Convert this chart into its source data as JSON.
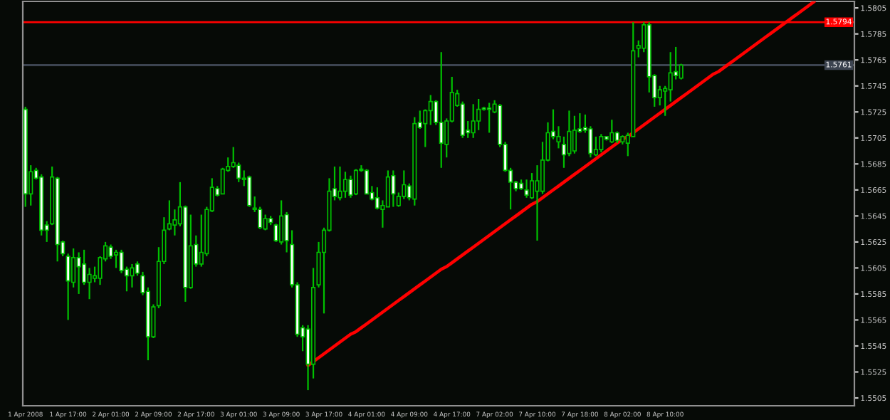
{
  "chart_data": {
    "type": "candlestick",
    "color": "#00c000",
    "categories": [
      "1 Apr 2008",
      null,
      null,
      null,
      null,
      null,
      null,
      null,
      "1 Apr 17:00",
      null,
      null,
      null,
      null,
      null,
      null,
      null,
      "2 Apr 01:00",
      null,
      null,
      null,
      null,
      null,
      null,
      null,
      "2 Apr 09:00",
      null,
      null,
      null,
      null,
      null,
      null,
      null,
      "2 Apr 17:00",
      null,
      null,
      null,
      null,
      null,
      null,
      null,
      "3 Apr 01:00",
      null,
      null,
      null,
      null,
      null,
      null,
      null,
      "3 Apr 09:00",
      null,
      null,
      null,
      null,
      null,
      null,
      null,
      "3 Apr 17:00",
      null,
      null,
      null,
      null,
      null,
      null,
      null,
      "4 Apr 01:00",
      null,
      null,
      null,
      null,
      null,
      null,
      null,
      "4 Apr 09:00",
      null,
      null,
      null,
      null,
      null,
      null,
      null,
      "4 Apr 17:00",
      null,
      null,
      null,
      null,
      null,
      null,
      null,
      "7 Apr 02:00",
      null,
      null,
      null,
      null,
      null,
      null,
      null,
      "7 Apr 10:00",
      null,
      null,
      null,
      null,
      null,
      null,
      null,
      "7 Apr 18:00",
      null,
      null,
      null,
      null,
      null,
      null,
      null,
      "8 Apr 02:00",
      null,
      null,
      null,
      null,
      null,
      null,
      null,
      "8 Apr 10:00",
      null,
      null,
      null,
      null,
      null,
      null,
      null,
      null,
      null,
      null,
      null,
      null,
      null,
      null,
      null,
      null,
      null,
      null,
      null,
      null,
      null,
      null,
      null,
      null,
      null,
      null,
      null,
      null,
      null,
      null,
      null,
      null,
      null,
      null,
      null
    ],
    "ohlc": [
      [
        1.5727,
        1.5729,
        1.5652,
        1.5662
      ],
      [
        1.5662,
        1.5684,
        1.5653,
        1.5679
      ],
      [
        1.568,
        1.5682,
        1.5673,
        1.5674
      ],
      [
        1.5675,
        1.5677,
        1.563,
        1.5634
      ],
      [
        1.5638,
        1.5641,
        1.5625,
        1.5634
      ],
      [
        1.5639,
        1.5683,
        1.5638,
        1.5675
      ],
      [
        1.5674,
        1.5675,
        1.561,
        1.5623
      ],
      [
        1.5625,
        1.5626,
        1.5614,
        1.5616
      ],
      [
        1.5614,
        1.5616,
        1.5565,
        1.5595
      ],
      [
        1.5594,
        1.562,
        1.559,
        1.5613
      ],
      [
        1.5613,
        1.5617,
        1.5585,
        1.5606
      ],
      [
        1.5608,
        1.5619,
        1.5592,
        1.5594
      ],
      [
        1.5594,
        1.5605,
        1.5581,
        1.56
      ],
      [
        1.5597,
        1.5606,
        1.5594,
        1.5599
      ],
      [
        1.5597,
        1.5614,
        1.5592,
        1.5613
      ],
      [
        1.5612,
        1.5625,
        1.561,
        1.5622
      ],
      [
        1.5621,
        1.5623,
        1.5612,
        1.5614
      ],
      [
        1.5615,
        1.5619,
        1.5605,
        1.5617
      ],
      [
        1.5617,
        1.5619,
        1.5601,
        1.5603
      ],
      [
        1.5604,
        1.5606,
        1.5587,
        1.5599
      ],
      [
        1.5599,
        1.5608,
        1.559,
        1.5605
      ],
      [
        1.5608,
        1.561,
        1.5599,
        1.5601
      ],
      [
        1.5599,
        1.5602,
        1.5584,
        1.5586
      ],
      [
        1.5587,
        1.559,
        1.5534,
        1.5552
      ],
      [
        1.5552,
        1.5577,
        1.5551,
        1.5575
      ],
      [
        1.5576,
        1.5621,
        1.5574,
        1.561
      ],
      [
        1.561,
        1.5644,
        1.5608,
        1.5634
      ],
      [
        1.5635,
        1.5657,
        1.5634,
        1.5639
      ],
      [
        1.5638,
        1.565,
        1.563,
        1.5642
      ],
      [
        1.5639,
        1.5671,
        1.5637,
        1.5652
      ],
      [
        1.5652,
        1.5653,
        1.5579,
        1.559
      ],
      [
        1.559,
        1.5646,
        1.5589,
        1.5622
      ],
      [
        1.5623,
        1.563,
        1.5606,
        1.5608
      ],
      [
        1.5608,
        1.5646,
        1.5606,
        1.5617
      ],
      [
        1.5616,
        1.5652,
        1.5614,
        1.565
      ],
      [
        1.5649,
        1.5674,
        1.5648,
        1.5667
      ],
      [
        1.5666,
        1.5668,
        1.566,
        1.5661
      ],
      [
        1.5662,
        1.5682,
        1.5662,
        1.5681
      ],
      [
        1.568,
        1.569,
        1.5679,
        1.5683
      ],
      [
        1.5683,
        1.5698,
        1.5682,
        1.5686
      ],
      [
        1.5684,
        1.5686,
        1.5671,
        1.5674
      ],
      [
        1.5673,
        1.568,
        1.5668,
        1.5674
      ],
      [
        1.5675,
        1.5676,
        1.5652,
        1.5653
      ],
      [
        1.565,
        1.566,
        1.5648,
        1.5651
      ],
      [
        1.565,
        1.5652,
        1.5635,
        1.5636
      ],
      [
        1.5635,
        1.5646,
        1.5634,
        1.5643
      ],
      [
        1.5643,
        1.5645,
        1.5638,
        1.564
      ],
      [
        1.5638,
        1.5639,
        1.5625,
        1.5626
      ],
      [
        1.5625,
        1.5657,
        1.5623,
        1.5645
      ],
      [
        1.5646,
        1.5648,
        1.5617,
        1.5626
      ],
      [
        1.5623,
        1.5634,
        1.559,
        1.5592
      ],
      [
        1.5592,
        1.5594,
        1.5552,
        1.5554
      ],
      [
        1.5559,
        1.5561,
        1.5541,
        1.5552
      ],
      [
        1.5558,
        1.5561,
        1.5511,
        1.5531
      ],
      [
        1.5531,
        1.5605,
        1.552,
        1.559
      ],
      [
        1.5592,
        1.5625,
        1.559,
        1.5617
      ],
      [
        1.5617,
        1.5636,
        1.557,
        1.5634
      ],
      [
        1.5634,
        1.5674,
        1.5633,
        1.5664
      ],
      [
        1.5666,
        1.5683,
        1.5657,
        1.566
      ],
      [
        1.5659,
        1.5683,
        1.5657,
        1.5664
      ],
      [
        1.5664,
        1.5679,
        1.5659,
        1.5673
      ],
      [
        1.5673,
        1.5676,
        1.5659,
        1.5661
      ],
      [
        1.5662,
        1.5681,
        1.5661,
        1.568
      ],
      [
        1.568,
        1.5684,
        1.5679,
        1.5681
      ],
      [
        1.568,
        1.5681,
        1.5662,
        1.5662
      ],
      [
        1.5663,
        1.5668,
        1.5657,
        1.5658
      ],
      [
        1.5659,
        1.5667,
        1.565,
        1.5651
      ],
      [
        1.565,
        1.5657,
        1.5636,
        1.5653
      ],
      [
        1.5652,
        1.568,
        1.5652,
        1.5675
      ],
      [
        1.5676,
        1.568,
        1.5652,
        1.5662
      ],
      [
        1.5653,
        1.5663,
        1.5652,
        1.566
      ],
      [
        1.566,
        1.568,
        1.5658,
        1.5669
      ],
      [
        1.5668,
        1.567,
        1.5657,
        1.5659
      ],
      [
        1.5658,
        1.5721,
        1.5653,
        1.5716
      ],
      [
        1.5717,
        1.5726,
        1.5712,
        1.5713
      ],
      [
        1.5716,
        1.5727,
        1.5698,
        1.5726
      ],
      [
        1.5726,
        1.5738,
        1.5715,
        1.5733
      ],
      [
        1.5733,
        1.5734,
        1.5715,
        1.5717
      ],
      [
        1.5717,
        1.5771,
        1.5682,
        1.5701
      ],
      [
        1.57,
        1.572,
        1.569,
        1.5718
      ],
      [
        1.5718,
        1.5752,
        1.5717,
        1.574
      ],
      [
        1.573,
        1.5742,
        1.5729,
        1.5739
      ],
      [
        1.5731,
        1.5733,
        1.5705,
        1.5707
      ],
      [
        1.5711,
        1.5718,
        1.5705,
        1.5709
      ],
      [
        1.5709,
        1.5731,
        1.5705,
        1.5718
      ],
      [
        1.5718,
        1.5735,
        1.5711,
        1.5727
      ],
      [
        1.5728,
        1.5729,
        1.5726,
        1.5727
      ],
      [
        1.5728,
        1.5732,
        1.5709,
        1.5727
      ],
      [
        1.5725,
        1.5734,
        1.5724,
        1.5731
      ],
      [
        1.573,
        1.5731,
        1.5698,
        1.57
      ],
      [
        1.57,
        1.5702,
        1.5679,
        1.568
      ],
      [
        1.568,
        1.5682,
        1.565,
        1.5671
      ],
      [
        1.5671,
        1.5672,
        1.5664,
        1.5666
      ],
      [
        1.567,
        1.5673,
        1.5665,
        1.5666
      ],
      [
        1.5665,
        1.5673,
        1.5659,
        1.5661
      ],
      [
        1.5659,
        1.5678,
        1.5658,
        1.5672
      ],
      [
        1.5664,
        1.5684,
        1.5626,
        1.5672
      ],
      [
        1.5664,
        1.5702,
        1.5662,
        1.5688
      ],
      [
        1.5688,
        1.5717,
        1.5687,
        1.5709
      ],
      [
        1.571,
        1.5727,
        1.5704,
        1.5706
      ],
      [
        1.5702,
        1.5714,
        1.5697,
        1.5706
      ],
      [
        1.57,
        1.5706,
        1.5682,
        1.5692
      ],
      [
        1.5693,
        1.5726,
        1.5691,
        1.571
      ],
      [
        1.5695,
        1.5722,
        1.5693,
        1.5711
      ],
      [
        1.5712,
        1.5724,
        1.5709,
        1.571
      ],
      [
        1.5713,
        1.5723,
        1.5709,
        1.5711
      ],
      [
        1.5712,
        1.5714,
        1.569,
        1.5693
      ],
      [
        1.5692,
        1.5706,
        1.5691,
        1.5696
      ],
      [
        1.5696,
        1.5708,
        1.5694,
        1.5706
      ],
      [
        1.5706,
        1.5706,
        1.5703,
        1.5704
      ],
      [
        1.5702,
        1.5719,
        1.5701,
        1.5709
      ],
      [
        1.5709,
        1.571,
        1.5701,
        1.5703
      ],
      [
        1.5702,
        1.5707,
        1.57,
        1.5706
      ],
      [
        1.5701,
        1.5709,
        1.5691,
        1.5707
      ],
      [
        1.5706,
        1.5794,
        1.5706,
        1.5772
      ],
      [
        1.5774,
        1.578,
        1.5767,
        1.5776
      ],
      [
        1.5774,
        1.5794,
        1.5771,
        1.5792
      ],
      [
        1.5792,
        1.5794,
        1.574,
        1.5752
      ],
      [
        1.5753,
        1.5754,
        1.5729,
        1.5736
      ],
      [
        1.5736,
        1.5745,
        1.573,
        1.5742
      ],
      [
        1.5741,
        1.5745,
        1.5722,
        1.5743
      ],
      [
        1.5742,
        1.5771,
        1.5733,
        1.5755
      ],
      [
        1.5756,
        1.5775,
        1.575,
        1.5753
      ],
      [
        1.5751,
        1.5762,
        1.575,
        1.5761
      ],
      null,
      null,
      null,
      null,
      null,
      null,
      null,
      null,
      null,
      null,
      null,
      null,
      null,
      null,
      null,
      null,
      null,
      null,
      null,
      null,
      null,
      null,
      null,
      null,
      null,
      null,
      null,
      null,
      null,
      null,
      null,
      null
    ],
    "series": [
      {
        "type": "line",
        "color": "#ff0000",
        "values": [
          null,
          null,
          null,
          null,
          null,
          null,
          null,
          null,
          null,
          null,
          null,
          null,
          null,
          null,
          null,
          null,
          null,
          null,
          null,
          null,
          null,
          null,
          null,
          null,
          null,
          null,
          null,
          null,
          null,
          null,
          null,
          null,
          null,
          null,
          null,
          null,
          null,
          null,
          null,
          null,
          null,
          null,
          null,
          null,
          null,
          null,
          null,
          null,
          null,
          null,
          null,
          null,
          null,
          1.553,
          1.5533,
          1.5536,
          1.5539,
          1.5542,
          1.5545,
          1.5548,
          1.5551,
          1.5554,
          1.5556,
          1.5559,
          1.5562,
          1.5565,
          1.5568,
          1.5571,
          1.5574,
          1.5577,
          1.558,
          1.5583,
          1.5586,
          1.5589,
          1.5592,
          1.5595,
          1.5598,
          1.5601,
          1.5604,
          1.5606,
          1.5609,
          1.5612,
          1.5615,
          1.5618,
          1.5621,
          1.5624,
          1.5627,
          1.563,
          1.5633,
          1.5636,
          1.5639,
          1.5642,
          1.5645,
          1.5648,
          1.5651,
          1.5654,
          1.5656,
          1.5659,
          1.5662,
          1.5665,
          1.5668,
          1.5671,
          1.5674,
          1.5677,
          1.568,
          1.5683,
          1.5686,
          1.5689,
          1.5692,
          1.5695,
          1.5698,
          1.5701,
          1.5704,
          1.5706,
          1.5709,
          1.5712,
          1.5715,
          1.5718,
          1.5721,
          1.5724,
          1.5727,
          1.573,
          1.5733,
          1.5736,
          1.5739,
          1.5742,
          1.5745,
          1.5748,
          1.5751,
          1.5754,
          1.5756,
          1.5759,
          1.5762,
          1.5765,
          1.5768,
          1.5771,
          1.5774,
          1.5777,
          1.578,
          1.5783,
          1.5786,
          1.5789,
          1.5792,
          1.5795,
          1.5798,
          1.5801,
          1.5804,
          1.5807,
          1.581,
          null,
          null,
          null,
          null,
          null,
          null,
          null
        ]
      }
    ],
    "ylim": [
      1.5499,
      1.581
    ],
    "yticks": [
      1.5505,
      1.5525,
      1.5545,
      1.5565,
      1.5585,
      1.5605,
      1.5625,
      1.5645,
      1.5665,
      1.5685,
      1.5705,
      1.5725,
      1.5745,
      1.5765,
      1.5785,
      1.5805
    ],
    "ref_lines": [
      {
        "axis": "y",
        "value": 1.5794,
        "label": "1.5794",
        "color": "#ff0000",
        "line_style": "solid"
      },
      {
        "axis": "y",
        "value": 1.5761,
        "label": "1.5761",
        "color": "#3c4450",
        "line_style": "solid"
      }
    ]
  }
}
